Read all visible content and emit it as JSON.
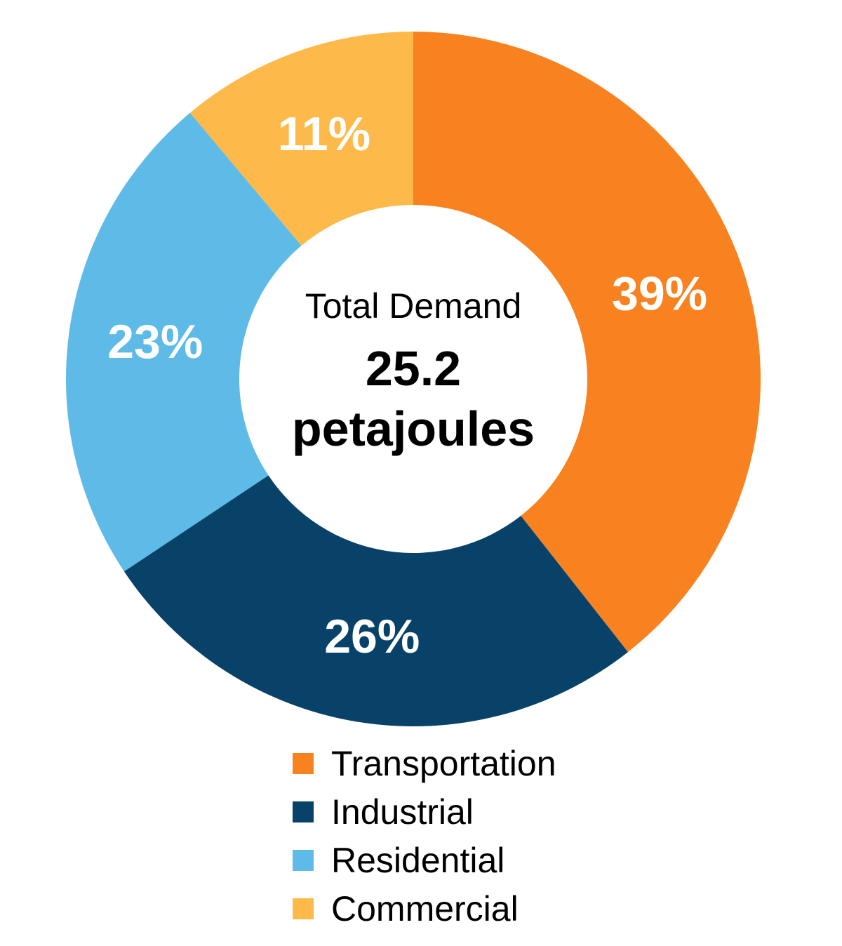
{
  "chart_data": {
    "type": "pie",
    "variant": "donut",
    "title": "",
    "categories": [
      "Transportation",
      "Industrial",
      "Residential",
      "Commercial"
    ],
    "values": [
      39,
      26,
      23,
      11
    ],
    "slices": [
      {
        "label": "Transportation",
        "value_percent": 39,
        "display": "39%",
        "color": "#F8821F"
      },
      {
        "label": "Industrial",
        "value_percent": 26,
        "display": "26%",
        "color": "#094269"
      },
      {
        "label": "Residential",
        "value_percent": 23,
        "display": "23%",
        "color": "#5EBBE7"
      },
      {
        "label": "Commercial",
        "value_percent": 11,
        "display": "11%",
        "color": "#FDBA4A"
      }
    ],
    "center_text": {
      "title": "Total Demand",
      "value": "25.2",
      "unit": "petajoules"
    },
    "percent_label_color": "#FFFFFF",
    "text_color": "#000000",
    "background_color": "#FFFFFF",
    "start_angle_deg": 0,
    "direction": "clockwise",
    "inner_radius_ratio": 0.5,
    "legend_position": "bottom",
    "legend": [
      "Transportation",
      "Industrial",
      "Residential",
      "Commercial"
    ]
  }
}
